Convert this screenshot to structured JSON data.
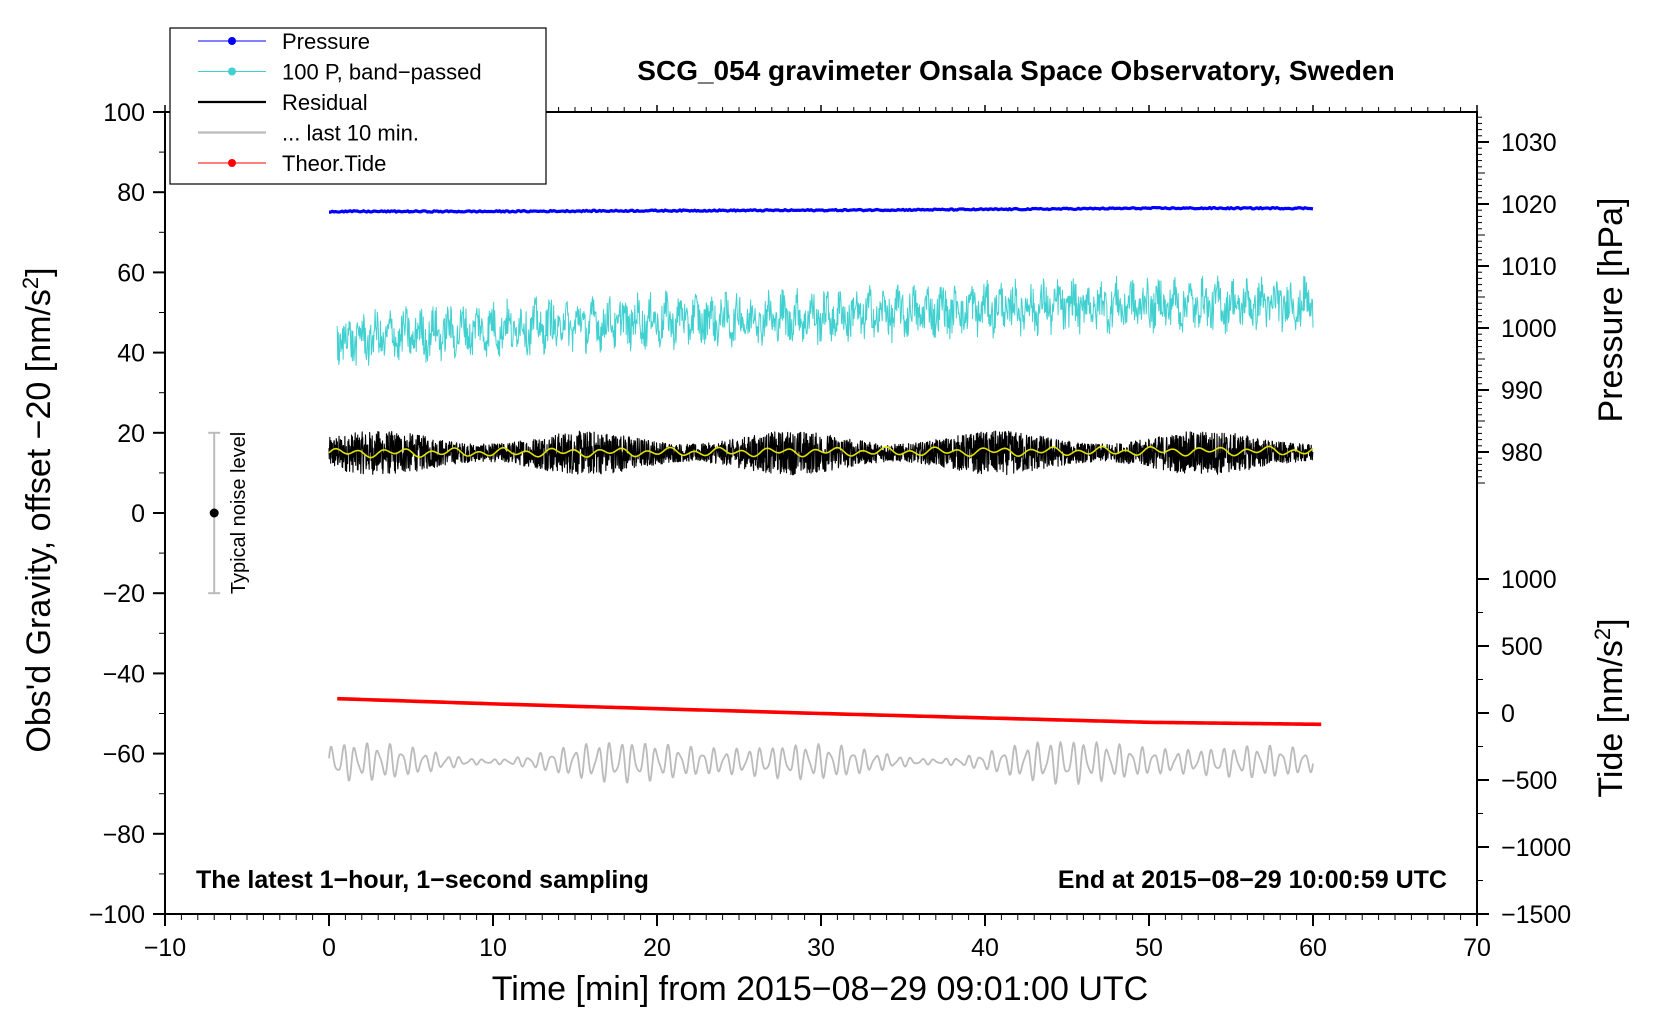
{
  "chart_data": {
    "type": "line",
    "title": "SCG_054 gravimeter Onsala Space Observatory, Sweden",
    "xlabel": "Time [min] from 2015−08−29 09:01:00 UTC",
    "ylabel_left": "Obs'd Gravity, offset −20 [nm/s²]",
    "ylabel_pressure": "Pressure [hPa]",
    "ylabel_tide": "Tide [nm/s²]",
    "xlim": [
      -10,
      70
    ],
    "ylim": [
      -100,
      100
    ],
    "x_ticks": [
      -10,
      0,
      10,
      20,
      30,
      40,
      50,
      60,
      70
    ],
    "x_tick_labels": [
      "−10",
      "0",
      "10",
      "20",
      "30",
      "40",
      "50",
      "60",
      "70"
    ],
    "y_ticks": [
      -100,
      -80,
      -60,
      -40,
      -20,
      0,
      20,
      40,
      60,
      80,
      100
    ],
    "y_tick_labels": [
      "−100",
      "−80",
      "−60",
      "−40",
      "−20",
      "0",
      "20",
      "40",
      "60",
      "80",
      "100"
    ],
    "pressure_axis": {
      "ticks": [
        980,
        990,
        1000,
        1010,
        1020,
        1030
      ],
      "tick_labels": [
        "980",
        "990",
        "1000",
        "1010",
        "1020",
        "1030"
      ],
      "range": [
        974.5,
        1033.5
      ]
    },
    "tide_axis": {
      "ticks": [
        -1500,
        -1000,
        -500,
        0,
        500,
        1000
      ],
      "tick_labels": [
        "−1500",
        "−1000",
        "−500",
        "0",
        "500",
        "1000"
      ],
      "range": [
        -1500,
        1000
      ]
    },
    "notes": {
      "bottom_left": "The latest 1−hour, 1−second sampling",
      "bottom_right": "End at 2015−08−29 10:00:59 UTC",
      "noise_label": "Typical noise level"
    },
    "noise_bar": {
      "x": -7,
      "center": 0,
      "low": -20,
      "high": 20
    },
    "legend": [
      {
        "label": "Pressure",
        "color": "#0000ff",
        "marker": true
      },
      {
        "label": "100 P, band−passed",
        "color": "#40d0d0",
        "marker": true
      },
      {
        "label": "Residual",
        "color": "#000000",
        "marker": false
      },
      {
        "label": "... last 10 min.",
        "color": "#bbbbbb",
        "marker": false
      },
      {
        "label": "Theor.Tide",
        "color": "#ff0000",
        "marker": true
      }
    ],
    "series": [
      {
        "name": "Pressure",
        "color": "#0000ff",
        "x": [
          0.0,
          10,
          20,
          30,
          40,
          50,
          60.0
        ],
        "y": [
          75.2,
          75.2,
          75.4,
          75.5,
          75.7,
          76.0,
          76.0
        ]
      },
      {
        "name": "100 P, band−passed",
        "color": "#40d0d0",
        "x": [
          0.5,
          10,
          20,
          30,
          40,
          50,
          60.0
        ],
        "y": [
          43,
          46,
          48,
          49,
          51,
          52,
          52
        ]
      },
      {
        "name": "Residual",
        "color": "#000000",
        "x": [
          0.0,
          60.0
        ],
        "y": [
          15,
          15
        ]
      },
      {
        "name": "Residual smoothed",
        "color": "#e0e000",
        "x": [
          0.0,
          60.0
        ],
        "y": [
          15,
          15.5
        ]
      },
      {
        "name": "... last 10 min.",
        "color": "#bbbbbb",
        "x": [
          0.0,
          60.0
        ],
        "y": [
          -62,
          -62
        ]
      },
      {
        "name": "Theor.Tide",
        "color": "#ff0000",
        "x": [
          0.5,
          10,
          20,
          30,
          40,
          50,
          60.5
        ],
        "y": [
          -46.3,
          -47.6,
          -48.8,
          -50.0,
          -51.1,
          -52.2,
          -52.7
        ]
      }
    ]
  }
}
